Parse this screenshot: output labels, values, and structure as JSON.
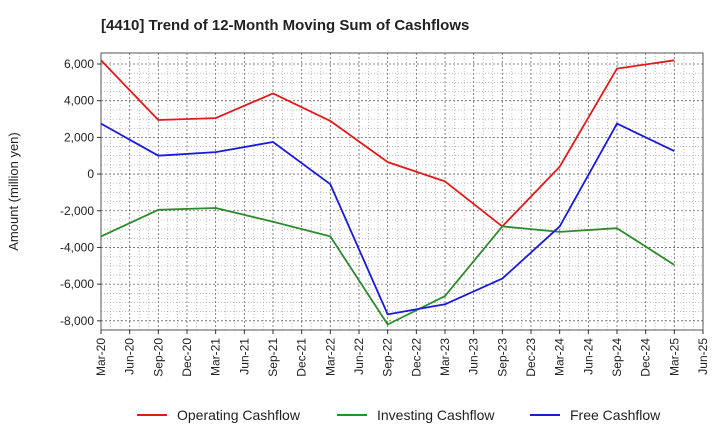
{
  "chart_data": {
    "type": "line",
    "title": "[4410]  Trend of 12-Month Moving Sum of Cashflows",
    "ylabel": "Amount (million yen)",
    "xlabel": "",
    "x_ticks": [
      "Mar-20",
      "Jun-20",
      "Sep-20",
      "Dec-20",
      "Mar-21",
      "Jun-21",
      "Sep-21",
      "Dec-21",
      "Mar-22",
      "Jun-22",
      "Sep-22",
      "Dec-22",
      "Mar-23",
      "Jun-23",
      "Sep-23",
      "Dec-23",
      "Mar-24",
      "Jun-24",
      "Sep-24",
      "Dec-24",
      "Mar-25",
      "Jun-25"
    ],
    "y_ticks": [
      6000,
      4000,
      2000,
      0,
      -2000,
      -4000,
      -6000,
      -8000
    ],
    "y_tick_labels": [
      "6,000",
      "4,000",
      "2,000",
      "0",
      "-2,000",
      "-4,000",
      "-6,000",
      "-8,000"
    ],
    "ylim": [
      -8500,
      6600
    ],
    "grid": true,
    "legend_position": "bottom",
    "series": [
      {
        "name": "Operating Cashflow",
        "color": "#e01b1b",
        "x": [
          "Mar-20",
          "Sep-20",
          "Mar-21",
          "Sep-21",
          "Mar-22",
          "Sep-22",
          "Mar-23",
          "Sep-23",
          "Mar-24",
          "Sep-24",
          "Mar-25"
        ],
        "values": [
          6200,
          2950,
          3050,
          4400,
          2900,
          650,
          -400,
          -2850,
          400,
          5750,
          6200
        ]
      },
      {
        "name": "Investing Cashflow",
        "color": "#2e8b2e",
        "x": [
          "Mar-20",
          "Sep-20",
          "Mar-21",
          "Sep-21",
          "Mar-22",
          "Sep-22",
          "Mar-23",
          "Sep-23",
          "Mar-24",
          "Sep-24",
          "Mar-25"
        ],
        "values": [
          -3400,
          -1950,
          -1850,
          -2600,
          -3400,
          -8200,
          -6650,
          -2850,
          -3150,
          -2950,
          -4950
        ]
      },
      {
        "name": "Free Cashflow",
        "color": "#1a1adb",
        "x": [
          "Mar-20",
          "Sep-20",
          "Mar-21",
          "Sep-21",
          "Mar-22",
          "Sep-22",
          "Mar-23",
          "Sep-23",
          "Mar-24",
          "Sep-24",
          "Mar-25"
        ],
        "values": [
          2750,
          1000,
          1200,
          1750,
          -550,
          -7650,
          -7100,
          -5700,
          -2850,
          2750,
          1250
        ]
      }
    ]
  }
}
